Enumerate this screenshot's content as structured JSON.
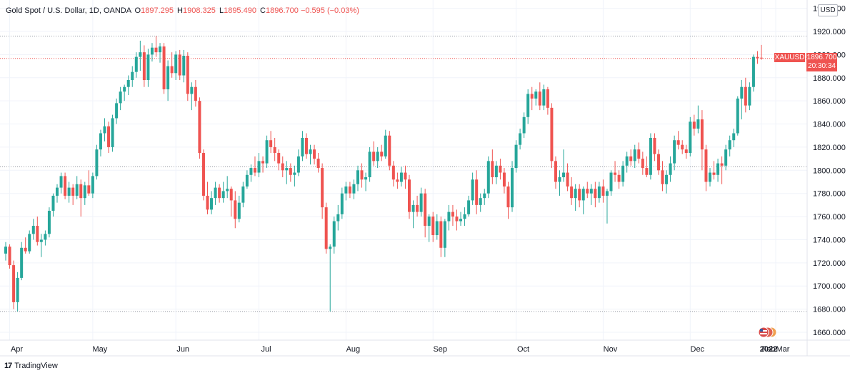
{
  "header": {
    "symbol_desc": "Gold Spot / U.S. Dollar, 1D, OANDA",
    "open_label": "O",
    "open": "1897.295",
    "high_label": "H",
    "high": "1908.325",
    "low_label": "L",
    "low": "1895.490",
    "close_label": "C",
    "close": "1896.700",
    "change": "−0.595 (−0.03%)"
  },
  "currency_button": "USD",
  "price_tag": {
    "symbol": "XAUUSD",
    "price": "1896.700",
    "countdown": "20:30:34"
  },
  "footer": {
    "logo": "17",
    "brand": "TradingView"
  },
  "colors": {
    "up": "#26a69a",
    "down": "#ef5350",
    "grid": "#f0f3fa"
  },
  "chart_data": {
    "type": "candlestick",
    "ylim": [
      1650,
      1950
    ],
    "y_ticks": [
      "1660.000",
      "1680.000",
      "1700.000",
      "1720.000",
      "1740.000",
      "1760.000",
      "1780.000",
      "1800.000",
      "1820.000",
      "1840.000",
      "1860.000",
      "1880.000",
      "1900.000",
      "1920.000",
      "1940.000"
    ],
    "x_ticks": [
      "Apr",
      "May",
      "Jun",
      "Jul",
      "Aug",
      "Sep",
      "Oct",
      "Nov",
      "Dec",
      "2022",
      "Feb",
      "Mar"
    ],
    "reference_lines": [
      1916.0,
      1896.7,
      1803.0,
      1678.0
    ],
    "series": [
      {
        "o": 1728,
        "h": 1738,
        "l": 1722,
        "c": 1734
      },
      {
        "o": 1734,
        "h": 1736,
        "l": 1715,
        "c": 1718
      },
      {
        "o": 1718,
        "h": 1722,
        "l": 1680,
        "c": 1686
      },
      {
        "o": 1686,
        "h": 1712,
        "l": 1678,
        "c": 1707
      },
      {
        "o": 1707,
        "h": 1738,
        "l": 1705,
        "c": 1733
      },
      {
        "o": 1733,
        "h": 1742,
        "l": 1728,
        "c": 1730
      },
      {
        "o": 1730,
        "h": 1748,
        "l": 1728,
        "c": 1745
      },
      {
        "o": 1745,
        "h": 1758,
        "l": 1740,
        "c": 1752
      },
      {
        "o": 1752,
        "h": 1760,
        "l": 1735,
        "c": 1738
      },
      {
        "o": 1738,
        "h": 1745,
        "l": 1725,
        "c": 1740
      },
      {
        "o": 1740,
        "h": 1748,
        "l": 1735,
        "c": 1745
      },
      {
        "o": 1745,
        "h": 1768,
        "l": 1742,
        "c": 1765
      },
      {
        "o": 1765,
        "h": 1780,
        "l": 1760,
        "c": 1778
      },
      {
        "o": 1778,
        "h": 1788,
        "l": 1772,
        "c": 1785
      },
      {
        "o": 1785,
        "h": 1798,
        "l": 1780,
        "c": 1795
      },
      {
        "o": 1795,
        "h": 1798,
        "l": 1775,
        "c": 1778
      },
      {
        "o": 1778,
        "h": 1790,
        "l": 1772,
        "c": 1785
      },
      {
        "o": 1785,
        "h": 1788,
        "l": 1770,
        "c": 1778
      },
      {
        "o": 1778,
        "h": 1795,
        "l": 1775,
        "c": 1788
      },
      {
        "o": 1788,
        "h": 1792,
        "l": 1760,
        "c": 1776
      },
      {
        "o": 1776,
        "h": 1790,
        "l": 1770,
        "c": 1787
      },
      {
        "o": 1787,
        "h": 1800,
        "l": 1778,
        "c": 1780
      },
      {
        "o": 1780,
        "h": 1798,
        "l": 1776,
        "c": 1795
      },
      {
        "o": 1795,
        "h": 1822,
        "l": 1792,
        "c": 1818
      },
      {
        "o": 1818,
        "h": 1835,
        "l": 1812,
        "c": 1832
      },
      {
        "o": 1832,
        "h": 1845,
        "l": 1825,
        "c": 1838
      },
      {
        "o": 1838,
        "h": 1842,
        "l": 1815,
        "c": 1820
      },
      {
        "o": 1820,
        "h": 1848,
        "l": 1816,
        "c": 1845
      },
      {
        "o": 1845,
        "h": 1862,
        "l": 1840,
        "c": 1858
      },
      {
        "o": 1858,
        "h": 1872,
        "l": 1852,
        "c": 1868
      },
      {
        "o": 1868,
        "h": 1874,
        "l": 1860,
        "c": 1872
      },
      {
        "o": 1872,
        "h": 1882,
        "l": 1865,
        "c": 1878
      },
      {
        "o": 1878,
        "h": 1890,
        "l": 1872,
        "c": 1885
      },
      {
        "o": 1885,
        "h": 1902,
        "l": 1880,
        "c": 1898
      },
      {
        "o": 1898,
        "h": 1912,
        "l": 1886,
        "c": 1902
      },
      {
        "o": 1902,
        "h": 1908,
        "l": 1872,
        "c": 1878
      },
      {
        "o": 1878,
        "h": 1905,
        "l": 1872,
        "c": 1900
      },
      {
        "o": 1900,
        "h": 1910,
        "l": 1894,
        "c": 1906
      },
      {
        "o": 1906,
        "h": 1916,
        "l": 1898,
        "c": 1902
      },
      {
        "o": 1902,
        "h": 1910,
        "l": 1893,
        "c": 1907
      },
      {
        "o": 1907,
        "h": 1910,
        "l": 1866,
        "c": 1870
      },
      {
        "o": 1870,
        "h": 1895,
        "l": 1860,
        "c": 1890
      },
      {
        "o": 1890,
        "h": 1902,
        "l": 1880,
        "c": 1884
      },
      {
        "o": 1884,
        "h": 1903,
        "l": 1878,
        "c": 1900
      },
      {
        "o": 1900,
        "h": 1904,
        "l": 1878,
        "c": 1882
      },
      {
        "o": 1882,
        "h": 1904,
        "l": 1876,
        "c": 1899
      },
      {
        "o": 1899,
        "h": 1902,
        "l": 1860,
        "c": 1866
      },
      {
        "o": 1866,
        "h": 1876,
        "l": 1852,
        "c": 1872
      },
      {
        "o": 1872,
        "h": 1878,
        "l": 1855,
        "c": 1860
      },
      {
        "o": 1860,
        "h": 1863,
        "l": 1810,
        "c": 1815
      },
      {
        "o": 1815,
        "h": 1818,
        "l": 1774,
        "c": 1778
      },
      {
        "o": 1778,
        "h": 1790,
        "l": 1762,
        "c": 1766
      },
      {
        "o": 1766,
        "h": 1782,
        "l": 1762,
        "c": 1776
      },
      {
        "o": 1776,
        "h": 1790,
        "l": 1770,
        "c": 1785
      },
      {
        "o": 1785,
        "h": 1788,
        "l": 1772,
        "c": 1776
      },
      {
        "o": 1776,
        "h": 1790,
        "l": 1772,
        "c": 1782
      },
      {
        "o": 1782,
        "h": 1795,
        "l": 1776,
        "c": 1784
      },
      {
        "o": 1784,
        "h": 1786,
        "l": 1760,
        "c": 1774
      },
      {
        "o": 1774,
        "h": 1782,
        "l": 1750,
        "c": 1758
      },
      {
        "o": 1758,
        "h": 1778,
        "l": 1755,
        "c": 1772
      },
      {
        "o": 1772,
        "h": 1790,
        "l": 1768,
        "c": 1786
      },
      {
        "o": 1786,
        "h": 1800,
        "l": 1784,
        "c": 1796
      },
      {
        "o": 1796,
        "h": 1805,
        "l": 1790,
        "c": 1802
      },
      {
        "o": 1802,
        "h": 1812,
        "l": 1795,
        "c": 1798
      },
      {
        "o": 1798,
        "h": 1815,
        "l": 1794,
        "c": 1808
      },
      {
        "o": 1808,
        "h": 1812,
        "l": 1798,
        "c": 1806
      },
      {
        "o": 1806,
        "h": 1830,
        "l": 1802,
        "c": 1826
      },
      {
        "o": 1826,
        "h": 1834,
        "l": 1815,
        "c": 1820
      },
      {
        "o": 1820,
        "h": 1828,
        "l": 1808,
        "c": 1815
      },
      {
        "o": 1815,
        "h": 1818,
        "l": 1800,
        "c": 1806
      },
      {
        "o": 1806,
        "h": 1812,
        "l": 1794,
        "c": 1800
      },
      {
        "o": 1800,
        "h": 1808,
        "l": 1788,
        "c": 1802
      },
      {
        "o": 1802,
        "h": 1806,
        "l": 1790,
        "c": 1796
      },
      {
        "o": 1796,
        "h": 1804,
        "l": 1786,
        "c": 1798
      },
      {
        "o": 1798,
        "h": 1818,
        "l": 1795,
        "c": 1812
      },
      {
        "o": 1812,
        "h": 1834,
        "l": 1808,
        "c": 1828
      },
      {
        "o": 1828,
        "h": 1832,
        "l": 1810,
        "c": 1814
      },
      {
        "o": 1814,
        "h": 1822,
        "l": 1805,
        "c": 1818
      },
      {
        "o": 1818,
        "h": 1822,
        "l": 1805,
        "c": 1810
      },
      {
        "o": 1810,
        "h": 1815,
        "l": 1798,
        "c": 1802
      },
      {
        "o": 1802,
        "h": 1806,
        "l": 1758,
        "c": 1768
      },
      {
        "o": 1768,
        "h": 1772,
        "l": 1728,
        "c": 1732
      },
      {
        "o": 1732,
        "h": 1736,
        "l": 1678,
        "c": 1734
      },
      {
        "o": 1734,
        "h": 1760,
        "l": 1728,
        "c": 1756
      },
      {
        "o": 1756,
        "h": 1770,
        "l": 1748,
        "c": 1762
      },
      {
        "o": 1762,
        "h": 1785,
        "l": 1758,
        "c": 1780
      },
      {
        "o": 1780,
        "h": 1790,
        "l": 1774,
        "c": 1786
      },
      {
        "o": 1786,
        "h": 1790,
        "l": 1776,
        "c": 1780
      },
      {
        "o": 1780,
        "h": 1792,
        "l": 1775,
        "c": 1788
      },
      {
        "o": 1788,
        "h": 1804,
        "l": 1782,
        "c": 1800
      },
      {
        "o": 1800,
        "h": 1806,
        "l": 1785,
        "c": 1792
      },
      {
        "o": 1792,
        "h": 1798,
        "l": 1782,
        "c": 1794
      },
      {
        "o": 1794,
        "h": 1820,
        "l": 1790,
        "c": 1816
      },
      {
        "o": 1816,
        "h": 1825,
        "l": 1804,
        "c": 1808
      },
      {
        "o": 1808,
        "h": 1820,
        "l": 1802,
        "c": 1816
      },
      {
        "o": 1816,
        "h": 1822,
        "l": 1808,
        "c": 1812
      },
      {
        "o": 1812,
        "h": 1835,
        "l": 1810,
        "c": 1830
      },
      {
        "o": 1830,
        "h": 1834,
        "l": 1800,
        "c": 1804
      },
      {
        "o": 1804,
        "h": 1808,
        "l": 1786,
        "c": 1792
      },
      {
        "o": 1792,
        "h": 1798,
        "l": 1784,
        "c": 1790
      },
      {
        "o": 1790,
        "h": 1803,
        "l": 1786,
        "c": 1798
      },
      {
        "o": 1798,
        "h": 1804,
        "l": 1784,
        "c": 1792
      },
      {
        "o": 1792,
        "h": 1796,
        "l": 1758,
        "c": 1764
      },
      {
        "o": 1764,
        "h": 1774,
        "l": 1750,
        "c": 1770
      },
      {
        "o": 1770,
        "h": 1778,
        "l": 1760,
        "c": 1764
      },
      {
        "o": 1764,
        "h": 1785,
        "l": 1760,
        "c": 1780
      },
      {
        "o": 1780,
        "h": 1784,
        "l": 1742,
        "c": 1752
      },
      {
        "o": 1752,
        "h": 1762,
        "l": 1738,
        "c": 1760
      },
      {
        "o": 1760,
        "h": 1764,
        "l": 1738,
        "c": 1744
      },
      {
        "o": 1744,
        "h": 1762,
        "l": 1740,
        "c": 1756
      },
      {
        "o": 1756,
        "h": 1760,
        "l": 1725,
        "c": 1733
      },
      {
        "o": 1733,
        "h": 1758,
        "l": 1725,
        "c": 1756
      },
      {
        "o": 1756,
        "h": 1770,
        "l": 1748,
        "c": 1764
      },
      {
        "o": 1764,
        "h": 1770,
        "l": 1752,
        "c": 1760
      },
      {
        "o": 1760,
        "h": 1766,
        "l": 1748,
        "c": 1756
      },
      {
        "o": 1756,
        "h": 1764,
        "l": 1752,
        "c": 1758
      },
      {
        "o": 1758,
        "h": 1768,
        "l": 1752,
        "c": 1762
      },
      {
        "o": 1762,
        "h": 1778,
        "l": 1760,
        "c": 1774
      },
      {
        "o": 1774,
        "h": 1798,
        "l": 1770,
        "c": 1792
      },
      {
        "o": 1792,
        "h": 1800,
        "l": 1762,
        "c": 1770
      },
      {
        "o": 1770,
        "h": 1780,
        "l": 1764,
        "c": 1776
      },
      {
        "o": 1776,
        "h": 1784,
        "l": 1770,
        "c": 1780
      },
      {
        "o": 1780,
        "h": 1812,
        "l": 1776,
        "c": 1808
      },
      {
        "o": 1808,
        "h": 1818,
        "l": 1788,
        "c": 1794
      },
      {
        "o": 1794,
        "h": 1808,
        "l": 1788,
        "c": 1804
      },
      {
        "o": 1804,
        "h": 1810,
        "l": 1792,
        "c": 1798
      },
      {
        "o": 1798,
        "h": 1802,
        "l": 1780,
        "c": 1786
      },
      {
        "o": 1786,
        "h": 1790,
        "l": 1758,
        "c": 1768
      },
      {
        "o": 1768,
        "h": 1808,
        "l": 1764,
        "c": 1802
      },
      {
        "o": 1802,
        "h": 1826,
        "l": 1798,
        "c": 1822
      },
      {
        "o": 1822,
        "h": 1836,
        "l": 1818,
        "c": 1832
      },
      {
        "o": 1832,
        "h": 1850,
        "l": 1828,
        "c": 1846
      },
      {
        "o": 1846,
        "h": 1870,
        "l": 1840,
        "c": 1866
      },
      {
        "o": 1866,
        "h": 1872,
        "l": 1852,
        "c": 1862
      },
      {
        "o": 1862,
        "h": 1870,
        "l": 1856,
        "c": 1868
      },
      {
        "o": 1868,
        "h": 1876,
        "l": 1852,
        "c": 1856
      },
      {
        "o": 1856,
        "h": 1874,
        "l": 1852,
        "c": 1870
      },
      {
        "o": 1870,
        "h": 1872,
        "l": 1848,
        "c": 1854
      },
      {
        "o": 1854,
        "h": 1858,
        "l": 1802,
        "c": 1808
      },
      {
        "o": 1808,
        "h": 1812,
        "l": 1784,
        "c": 1790
      },
      {
        "o": 1790,
        "h": 1800,
        "l": 1778,
        "c": 1794
      },
      {
        "o": 1794,
        "h": 1818,
        "l": 1790,
        "c": 1798
      },
      {
        "o": 1798,
        "h": 1806,
        "l": 1782,
        "c": 1786
      },
      {
        "o": 1786,
        "h": 1794,
        "l": 1770,
        "c": 1776
      },
      {
        "o": 1776,
        "h": 1788,
        "l": 1765,
        "c": 1784
      },
      {
        "o": 1784,
        "h": 1788,
        "l": 1768,
        "c": 1774
      },
      {
        "o": 1774,
        "h": 1786,
        "l": 1762,
        "c": 1784
      },
      {
        "o": 1784,
        "h": 1790,
        "l": 1776,
        "c": 1780
      },
      {
        "o": 1780,
        "h": 1788,
        "l": 1770,
        "c": 1784
      },
      {
        "o": 1784,
        "h": 1790,
        "l": 1768,
        "c": 1776
      },
      {
        "o": 1776,
        "h": 1790,
        "l": 1772,
        "c": 1786
      },
      {
        "o": 1786,
        "h": 1792,
        "l": 1772,
        "c": 1778
      },
      {
        "o": 1778,
        "h": 1784,
        "l": 1754,
        "c": 1782
      },
      {
        "o": 1782,
        "h": 1800,
        "l": 1778,
        "c": 1798
      },
      {
        "o": 1798,
        "h": 1808,
        "l": 1790,
        "c": 1796
      },
      {
        "o": 1796,
        "h": 1800,
        "l": 1784,
        "c": 1790
      },
      {
        "o": 1790,
        "h": 1808,
        "l": 1786,
        "c": 1804
      },
      {
        "o": 1804,
        "h": 1816,
        "l": 1798,
        "c": 1812
      },
      {
        "o": 1812,
        "h": 1818,
        "l": 1804,
        "c": 1808
      },
      {
        "o": 1808,
        "h": 1822,
        "l": 1802,
        "c": 1818
      },
      {
        "o": 1818,
        "h": 1824,
        "l": 1806,
        "c": 1810
      },
      {
        "o": 1810,
        "h": 1816,
        "l": 1796,
        "c": 1802
      },
      {
        "o": 1802,
        "h": 1812,
        "l": 1794,
        "c": 1796
      },
      {
        "o": 1796,
        "h": 1832,
        "l": 1792,
        "c": 1828
      },
      {
        "o": 1828,
        "h": 1832,
        "l": 1808,
        "c": 1814
      },
      {
        "o": 1814,
        "h": 1818,
        "l": 1796,
        "c": 1800
      },
      {
        "o": 1800,
        "h": 1808,
        "l": 1782,
        "c": 1788
      },
      {
        "o": 1788,
        "h": 1800,
        "l": 1780,
        "c": 1796
      },
      {
        "o": 1796,
        "h": 1812,
        "l": 1790,
        "c": 1806
      },
      {
        "o": 1806,
        "h": 1830,
        "l": 1800,
        "c": 1826
      },
      {
        "o": 1826,
        "h": 1834,
        "l": 1818,
        "c": 1822
      },
      {
        "o": 1822,
        "h": 1826,
        "l": 1814,
        "c": 1818
      },
      {
        "o": 1818,
        "h": 1822,
        "l": 1810,
        "c": 1815
      },
      {
        "o": 1815,
        "h": 1846,
        "l": 1812,
        "c": 1842
      },
      {
        "o": 1842,
        "h": 1848,
        "l": 1830,
        "c": 1836
      },
      {
        "o": 1836,
        "h": 1856,
        "l": 1832,
        "c": 1844
      },
      {
        "o": 1844,
        "h": 1852,
        "l": 1800,
        "c": 1818
      },
      {
        "o": 1818,
        "h": 1822,
        "l": 1782,
        "c": 1790
      },
      {
        "o": 1790,
        "h": 1802,
        "l": 1786,
        "c": 1798
      },
      {
        "o": 1798,
        "h": 1808,
        "l": 1792,
        "c": 1796
      },
      {
        "o": 1796,
        "h": 1810,
        "l": 1790,
        "c": 1806
      },
      {
        "o": 1806,
        "h": 1812,
        "l": 1788,
        "c": 1804
      },
      {
        "o": 1804,
        "h": 1822,
        "l": 1800,
        "c": 1818
      },
      {
        "o": 1818,
        "h": 1830,
        "l": 1812,
        "c": 1826
      },
      {
        "o": 1826,
        "h": 1836,
        "l": 1820,
        "c": 1832
      },
      {
        "o": 1832,
        "h": 1864,
        "l": 1830,
        "c": 1862
      },
      {
        "o": 1862,
        "h": 1878,
        "l": 1844,
        "c": 1872
      },
      {
        "o": 1872,
        "h": 1880,
        "l": 1850,
        "c": 1856
      },
      {
        "o": 1856,
        "h": 1876,
        "l": 1852,
        "c": 1872
      },
      {
        "o": 1872,
        "h": 1900,
        "l": 1868,
        "c": 1898
      },
      {
        "o": 1898,
        "h": 1903,
        "l": 1892,
        "c": 1897
      },
      {
        "o": 1897.295,
        "h": 1908.325,
        "l": 1895.49,
        "c": 1896.7
      }
    ]
  }
}
